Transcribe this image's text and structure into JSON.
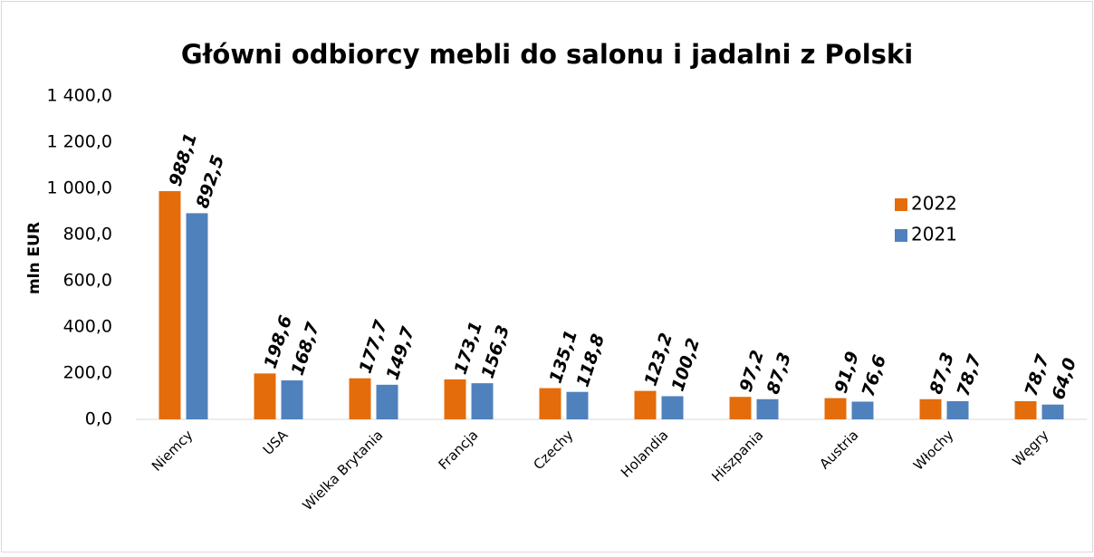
{
  "chart_data": {
    "type": "bar",
    "title": "Główni odbiorcy mebli do salonu i jadalni z Polski",
    "y_label": "mln EUR",
    "categories": [
      "Niemcy",
      "USA",
      "Wielka Brytania",
      "Francja",
      "Czechy",
      "Holandia",
      "Hiszpania",
      "Austria",
      "Włochy",
      "Węgry"
    ],
    "series": [
      {
        "name": "2022",
        "color": "#e46c0a",
        "values": [
          988.1,
          198.6,
          177.7,
          173.1,
          135.1,
          123.2,
          97.2,
          91.9,
          87.3,
          78.7
        ],
        "value_labels": [
          "988,1",
          "198,6",
          "177,7",
          "173,1",
          "135,1",
          "123,2",
          "97,2",
          "91,9",
          "87,3",
          "78,7"
        ]
      },
      {
        "name": "2021",
        "color": "#4f81bd",
        "values": [
          892.5,
          168.7,
          149.7,
          156.3,
          118.8,
          100.2,
          87.3,
          76.6,
          78.7,
          64.0
        ],
        "value_labels": [
          "892,5",
          "168,7",
          "149,7",
          "156,3",
          "118,8",
          "100,2",
          "87,3",
          "76,6",
          "78,7",
          "64,0"
        ]
      }
    ],
    "ylim": [
      0,
      1400
    ],
    "yticks": [
      {
        "value": 0,
        "label": "0,0"
      },
      {
        "value": 200,
        "label": "200,0"
      },
      {
        "value": 400,
        "label": "400,0"
      },
      {
        "value": 600,
        "label": "600,0"
      },
      {
        "value": 800,
        "label": "800,0"
      },
      {
        "value": 1000,
        "label": "1 000,0"
      },
      {
        "value": 1200,
        "label": "1 200,0"
      },
      {
        "value": 1400,
        "label": "1 400,0"
      }
    ],
    "legend": "right"
  }
}
